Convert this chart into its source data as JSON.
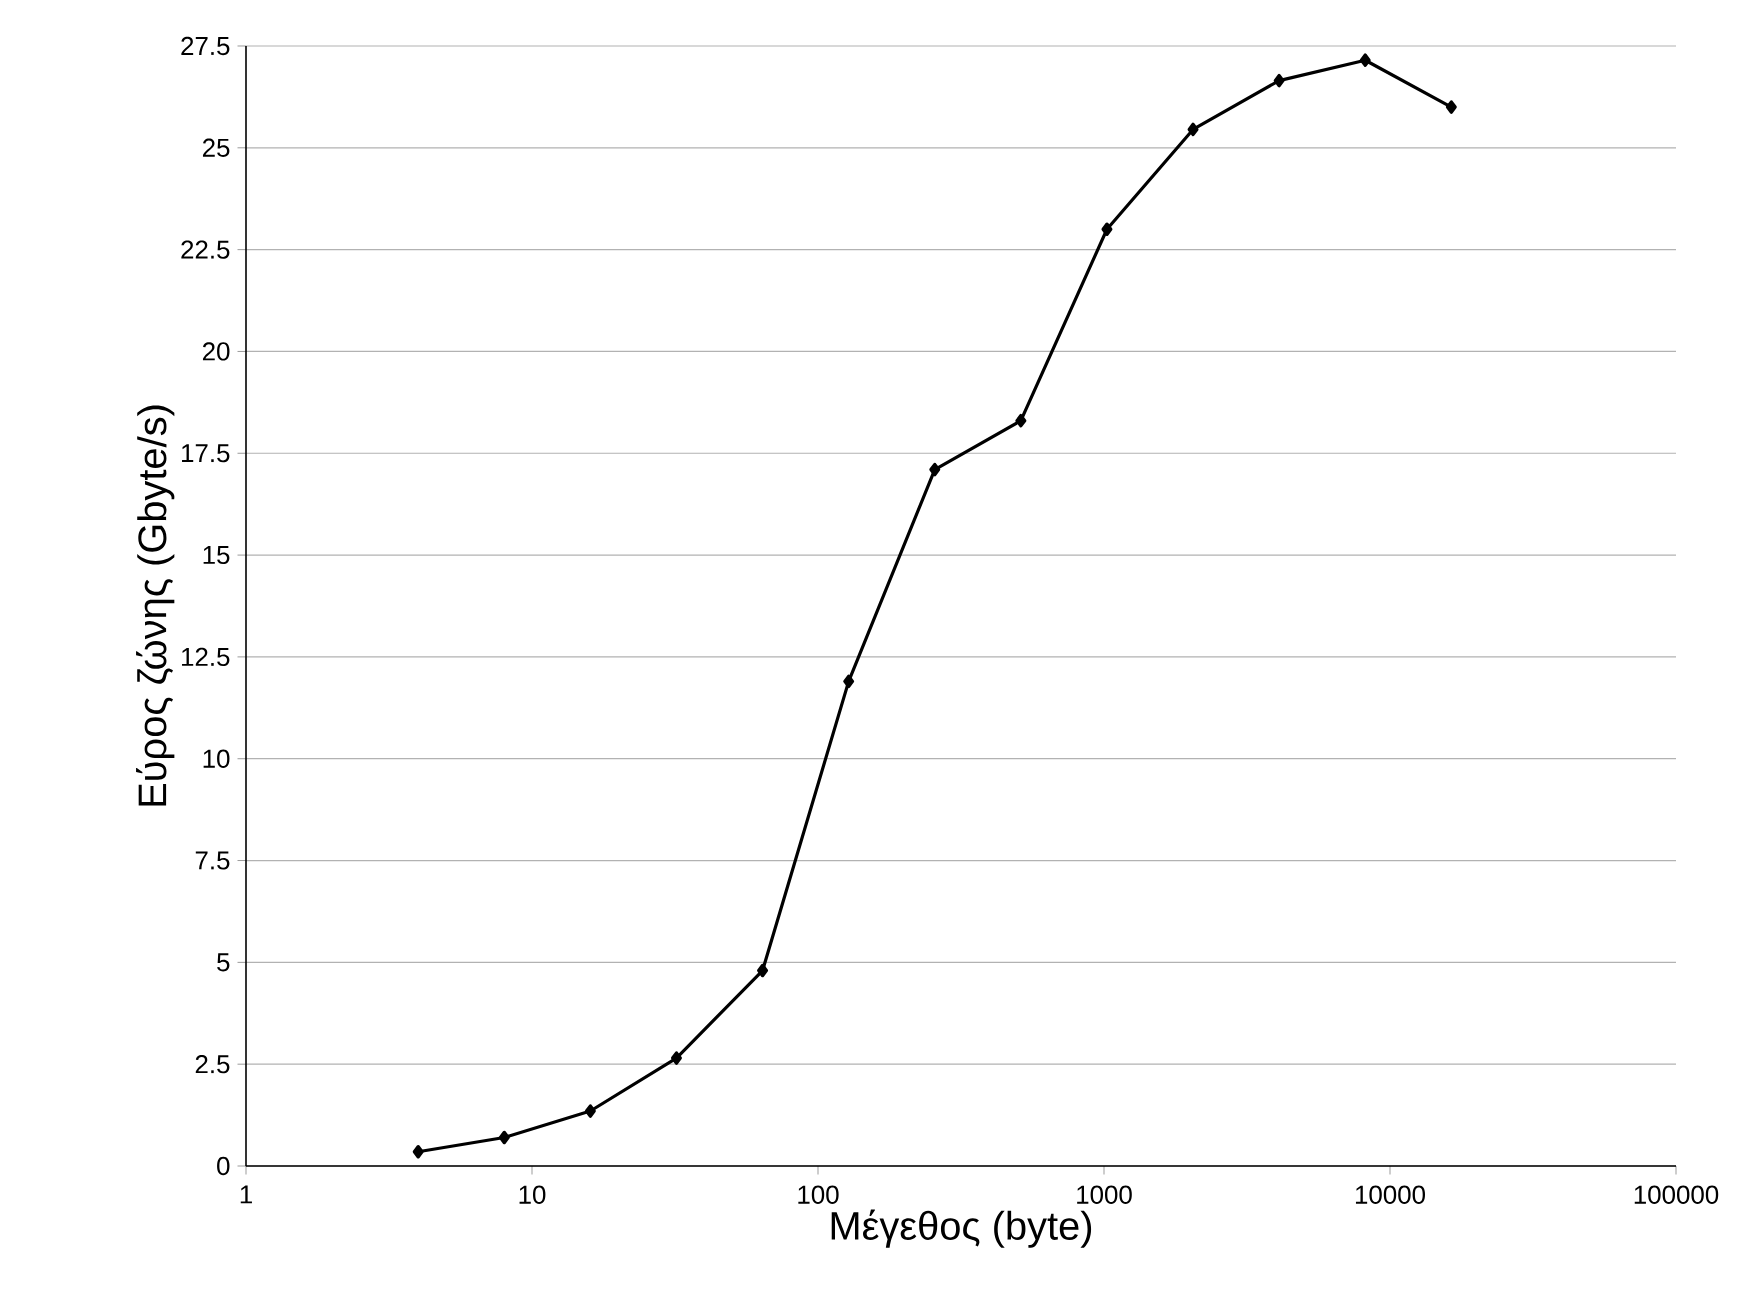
{
  "chart_data": {
    "type": "line",
    "xlabel": "Μέγεθος (byte)",
    "ylabel": "Εύρος ζώνης (Gbyte/s)",
    "x": [
      4,
      8,
      16,
      32,
      64,
      128,
      256,
      512,
      1024,
      2048,
      4096,
      8192,
      16384
    ],
    "series": [
      {
        "color": "#000000",
        "values": [
          0.35,
          0.7,
          1.35,
          2.65,
          4.8,
          11.9,
          17.1,
          18.3,
          23.0,
          25.45,
          26.65,
          27.15,
          26.0
        ]
      }
    ],
    "log": "x",
    "xlim": [
      1,
      100000
    ],
    "xticks": [
      1,
      10,
      100,
      1000,
      10000,
      100000
    ],
    "ylim": [
      0,
      27.5
    ],
    "yticks": [
      0,
      2.5,
      5,
      7.5,
      10,
      12.5,
      15,
      17.5,
      20,
      22.5,
      25,
      27.5
    ],
    "grid": "y",
    "marker": "diamond",
    "line_style": "solid"
  }
}
